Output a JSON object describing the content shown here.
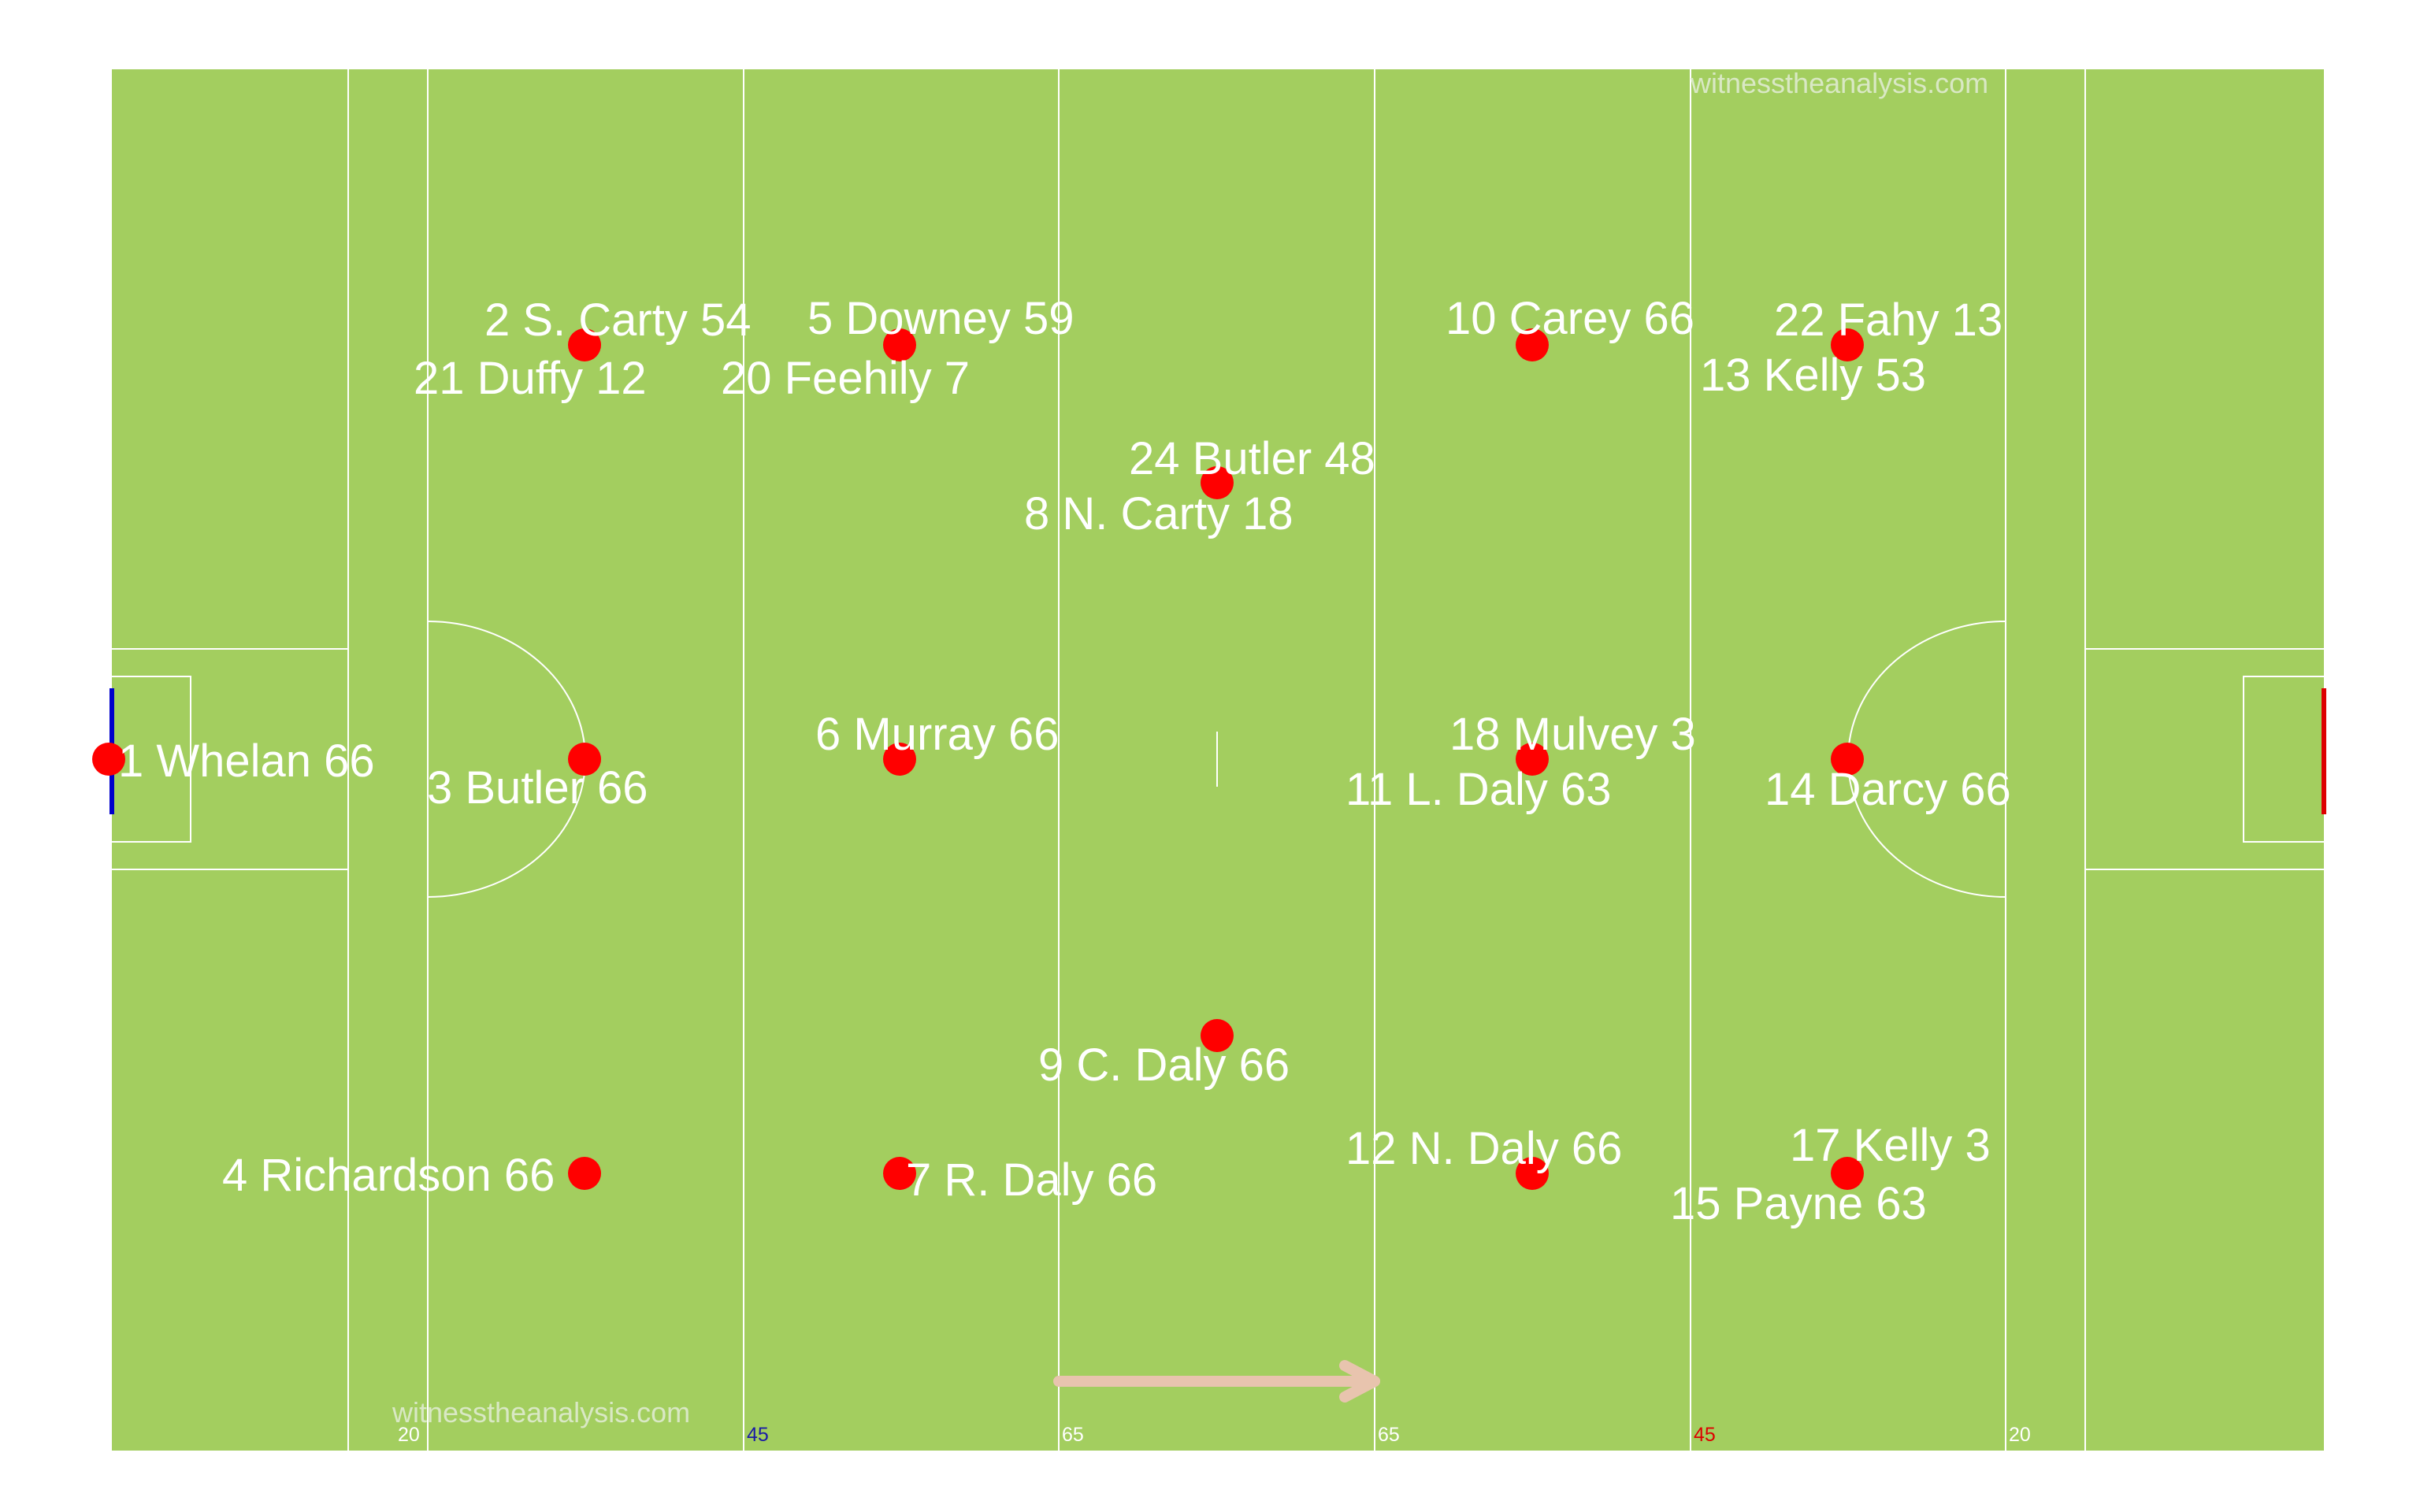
{
  "colors": {
    "pitch": "#a3ce5f",
    "lines": "#ffffff",
    "player_dot": "#ff0000",
    "home_goal": "#0000cc",
    "away_goal": "#dd0000",
    "arrow": "#e8c4ae",
    "label_45_left": "#1a1aa6",
    "label_45_right": "#dd0000"
  },
  "watermark": {
    "top": "witnesstheanalysis.com",
    "bottom": "witnesstheanalysis.com"
  },
  "line_labels": [
    {
      "id": "20-left",
      "text": "20"
    },
    {
      "id": "45-left",
      "text": "45"
    },
    {
      "id": "65-left",
      "text": "65"
    },
    {
      "id": "65-right",
      "text": "65"
    },
    {
      "id": "45-right",
      "text": "45"
    },
    {
      "id": "20-right",
      "text": "20"
    }
  ],
  "players": [
    {
      "id": "p1",
      "labels": [
        "1 Whelan 66"
      ]
    },
    {
      "id": "p2",
      "labels": [
        "2 S. Carty 54",
        "21 Duffy 12"
      ]
    },
    {
      "id": "p3",
      "labels": [
        "3 Butler 66"
      ]
    },
    {
      "id": "p4",
      "labels": [
        "4 Richardson 66"
      ]
    },
    {
      "id": "p5",
      "labels": [
        "5 Downey 59",
        "20 Feehily 7"
      ]
    },
    {
      "id": "p6",
      "labels": [
        "6 Murray 66"
      ]
    },
    {
      "id": "p7",
      "labels": [
        "7 R. Daly 66"
      ]
    },
    {
      "id": "p8",
      "labels": [
        "24 Butler 48",
        "8 N. Carty 18"
      ]
    },
    {
      "id": "p9",
      "labels": [
        "9 C. Daly 66"
      ]
    },
    {
      "id": "p10",
      "labels": [
        "10 Carey 66"
      ]
    },
    {
      "id": "p11",
      "labels": [
        "18 Mulvey 3",
        "11 L. Daly 63"
      ]
    },
    {
      "id": "p12",
      "labels": [
        "12 N. Daly 66"
      ]
    },
    {
      "id": "p13",
      "labels": [
        "22 Fahy 13",
        "13 Kelly 53"
      ]
    },
    {
      "id": "p14",
      "labels": [
        "14 Darcy 66"
      ]
    },
    {
      "id": "p15",
      "labels": [
        "17 Kelly 3",
        "15 Payne 63"
      ]
    }
  ]
}
